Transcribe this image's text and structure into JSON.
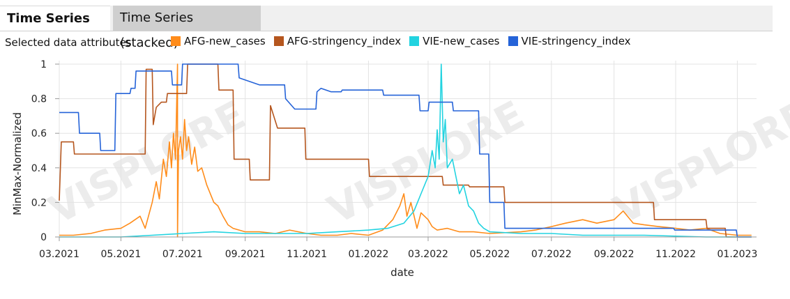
{
  "tabs": [
    {
      "label": "Time Series",
      "active": true
    },
    {
      "label": "Time Series (stacked)",
      "active": false
    }
  ],
  "selected_label": "Selected data attributes",
  "watermark": "VISPLORE",
  "chart_data": {
    "type": "line",
    "xlabel": "date",
    "ylabel": "MinMax-Normalized",
    "x_ticks": [
      "03.2021",
      "05.2021",
      "07.2021",
      "09.2021",
      "11.2021",
      "01.2022",
      "03.2022",
      "05.2022",
      "07.2022",
      "09.2022",
      "11.2022",
      "01.2023"
    ],
    "y_ticks": [
      "0",
      "0.2",
      "0.4",
      "0.6",
      "0.8",
      "1"
    ],
    "xlim": [
      "2021-03-01",
      "2023-01-20"
    ],
    "ylim": [
      0,
      1
    ],
    "grid": true,
    "legend_position": "top",
    "series": [
      {
        "name": "AFG-new_cases",
        "color": "#ff8c1a",
        "points": [
          [
            "2021-03-01",
            0.01
          ],
          [
            "2021-03-15",
            0.01
          ],
          [
            "2021-04-01",
            0.02
          ],
          [
            "2021-04-15",
            0.04
          ],
          [
            "2021-05-01",
            0.05
          ],
          [
            "2021-05-10",
            0.08
          ],
          [
            "2021-05-20",
            0.12
          ],
          [
            "2021-05-25",
            0.05
          ],
          [
            "2021-06-01",
            0.2
          ],
          [
            "2021-06-05",
            0.32
          ],
          [
            "2021-06-08",
            0.22
          ],
          [
            "2021-06-12",
            0.45
          ],
          [
            "2021-06-15",
            0.35
          ],
          [
            "2021-06-18",
            0.55
          ],
          [
            "2021-06-20",
            0.4
          ],
          [
            "2021-06-22",
            0.6
          ],
          [
            "2021-06-24",
            0.45
          ],
          [
            "2021-06-26",
            1.0
          ],
          [
            "2021-06-26",
            0.0
          ],
          [
            "2021-06-27",
            0.5
          ],
          [
            "2021-06-29",
            0.58
          ],
          [
            "2021-07-01",
            0.45
          ],
          [
            "2021-07-03",
            0.68
          ],
          [
            "2021-07-05",
            0.5
          ],
          [
            "2021-07-07",
            0.58
          ],
          [
            "2021-07-10",
            0.42
          ],
          [
            "2021-07-13",
            0.52
          ],
          [
            "2021-07-16",
            0.38
          ],
          [
            "2021-07-20",
            0.4
          ],
          [
            "2021-07-25",
            0.3
          ],
          [
            "2021-08-01",
            0.2
          ],
          [
            "2021-08-05",
            0.18
          ],
          [
            "2021-08-10",
            0.12
          ],
          [
            "2021-08-15",
            0.07
          ],
          [
            "2021-08-20",
            0.05
          ],
          [
            "2021-09-01",
            0.03
          ],
          [
            "2021-09-15",
            0.03
          ],
          [
            "2021-10-01",
            0.02
          ],
          [
            "2021-10-15",
            0.04
          ],
          [
            "2021-11-01",
            0.02
          ],
          [
            "2021-11-15",
            0.01
          ],
          [
            "2021-12-01",
            0.01
          ],
          [
            "2021-12-15",
            0.02
          ],
          [
            "2022-01-01",
            0.01
          ],
          [
            "2022-01-15",
            0.04
          ],
          [
            "2022-01-25",
            0.1
          ],
          [
            "2022-02-01",
            0.18
          ],
          [
            "2022-02-05",
            0.25
          ],
          [
            "2022-02-08",
            0.12
          ],
          [
            "2022-02-12",
            0.2
          ],
          [
            "2022-02-18",
            0.05
          ],
          [
            "2022-02-22",
            0.14
          ],
          [
            "2022-03-01",
            0.1
          ],
          [
            "2022-03-05",
            0.06
          ],
          [
            "2022-03-10",
            0.04
          ],
          [
            "2022-03-20",
            0.05
          ],
          [
            "2022-04-01",
            0.03
          ],
          [
            "2022-04-15",
            0.03
          ],
          [
            "2022-05-01",
            0.02
          ],
          [
            "2022-06-01",
            0.03
          ],
          [
            "2022-06-15",
            0.04
          ],
          [
            "2022-07-01",
            0.06
          ],
          [
            "2022-07-15",
            0.08
          ],
          [
            "2022-08-01",
            0.1
          ],
          [
            "2022-08-15",
            0.08
          ],
          [
            "2022-09-01",
            0.1
          ],
          [
            "2022-09-10",
            0.15
          ],
          [
            "2022-09-20",
            0.08
          ],
          [
            "2022-10-01",
            0.07
          ],
          [
            "2022-10-15",
            0.06
          ],
          [
            "2022-11-01",
            0.05
          ],
          [
            "2022-11-15",
            0.04
          ],
          [
            "2022-12-01",
            0.05
          ],
          [
            "2022-12-15",
            0.02
          ],
          [
            "2023-01-01",
            0.01
          ],
          [
            "2023-01-15",
            0.01
          ]
        ]
      },
      {
        "name": "AFG-stringency_index",
        "color": "#b5561e",
        "points": [
          [
            "2021-03-01",
            0.21
          ],
          [
            "2021-03-03",
            0.55
          ],
          [
            "2021-03-15",
            0.55
          ],
          [
            "2021-03-16",
            0.48
          ],
          [
            "2021-05-25",
            0.48
          ],
          [
            "2021-05-26",
            0.97
          ],
          [
            "2021-06-01",
            0.97
          ],
          [
            "2021-06-02",
            0.65
          ],
          [
            "2021-06-05",
            0.75
          ],
          [
            "2021-06-10",
            0.78
          ],
          [
            "2021-06-15",
            0.78
          ],
          [
            "2021-06-16",
            0.83
          ],
          [
            "2021-07-05",
            0.83
          ],
          [
            "2021-07-06",
            1.0
          ],
          [
            "2021-08-05",
            1.0
          ],
          [
            "2021-08-06",
            0.85
          ],
          [
            "2021-08-20",
            0.85
          ],
          [
            "2021-08-21",
            0.45
          ],
          [
            "2021-09-05",
            0.45
          ],
          [
            "2021-09-06",
            0.33
          ],
          [
            "2021-09-25",
            0.33
          ],
          [
            "2021-09-26",
            0.76
          ],
          [
            "2021-10-03",
            0.63
          ],
          [
            "2021-10-30",
            0.63
          ],
          [
            "2021-10-31",
            0.45
          ],
          [
            "2022-01-01",
            0.45
          ],
          [
            "2022-01-02",
            0.35
          ],
          [
            "2022-03-15",
            0.35
          ],
          [
            "2022-03-16",
            0.3
          ],
          [
            "2022-04-10",
            0.3
          ],
          [
            "2022-04-11",
            0.29
          ],
          [
            "2022-05-15",
            0.29
          ],
          [
            "2022-05-16",
            0.2
          ],
          [
            "2022-10-10",
            0.2
          ],
          [
            "2022-10-11",
            0.1
          ],
          [
            "2022-12-01",
            0.1
          ],
          [
            "2022-12-02",
            0.05
          ],
          [
            "2022-12-20",
            0.05
          ],
          [
            "2022-12-21",
            0.0
          ],
          [
            "2023-01-15",
            0.0
          ]
        ]
      },
      {
        "name": "VIE-new_cases",
        "color": "#22d3e0",
        "points": [
          [
            "2021-03-01",
            0.0
          ],
          [
            "2021-05-01",
            0.0
          ],
          [
            "2021-06-01",
            0.01
          ],
          [
            "2021-07-01",
            0.02
          ],
          [
            "2021-08-01",
            0.03
          ],
          [
            "2021-09-01",
            0.02
          ],
          [
            "2021-10-01",
            0.02
          ],
          [
            "2021-11-01",
            0.02
          ],
          [
            "2021-12-01",
            0.03
          ],
          [
            "2022-01-01",
            0.04
          ],
          [
            "2022-01-20",
            0.05
          ],
          [
            "2022-02-05",
            0.08
          ],
          [
            "2022-02-15",
            0.15
          ],
          [
            "2022-02-22",
            0.25
          ],
          [
            "2022-03-01",
            0.35
          ],
          [
            "2022-03-05",
            0.5
          ],
          [
            "2022-03-08",
            0.4
          ],
          [
            "2022-03-10",
            0.62
          ],
          [
            "2022-03-12",
            0.45
          ],
          [
            "2022-03-14",
            1.0
          ],
          [
            "2022-03-16",
            0.55
          ],
          [
            "2022-03-18",
            0.68
          ],
          [
            "2022-03-20",
            0.4
          ],
          [
            "2022-03-25",
            0.45
          ],
          [
            "2022-04-01",
            0.25
          ],
          [
            "2022-04-05",
            0.3
          ],
          [
            "2022-04-10",
            0.18
          ],
          [
            "2022-04-15",
            0.15
          ],
          [
            "2022-04-20",
            0.08
          ],
          [
            "2022-04-25",
            0.05
          ],
          [
            "2022-05-01",
            0.03
          ],
          [
            "2022-06-01",
            0.02
          ],
          [
            "2022-07-01",
            0.02
          ],
          [
            "2022-08-01",
            0.01
          ],
          [
            "2022-10-01",
            0.01
          ],
          [
            "2022-12-01",
            0.0
          ],
          [
            "2023-01-15",
            0.0
          ]
        ]
      },
      {
        "name": "VIE-stringency_index",
        "color": "#2563d8",
        "points": [
          [
            "2021-03-01",
            0.72
          ],
          [
            "2021-03-20",
            0.72
          ],
          [
            "2021-03-21",
            0.6
          ],
          [
            "2021-04-10",
            0.6
          ],
          [
            "2021-04-11",
            0.5
          ],
          [
            "2021-04-25",
            0.5
          ],
          [
            "2021-04-26",
            0.83
          ],
          [
            "2021-05-10",
            0.83
          ],
          [
            "2021-05-11",
            0.86
          ],
          [
            "2021-05-15",
            0.86
          ],
          [
            "2021-05-16",
            0.96
          ],
          [
            "2021-06-20",
            0.96
          ],
          [
            "2021-06-21",
            0.88
          ],
          [
            "2021-06-30",
            0.88
          ],
          [
            "2021-07-01",
            1.0
          ],
          [
            "2021-08-25",
            1.0
          ],
          [
            "2021-08-26",
            0.92
          ],
          [
            "2021-09-05",
            0.9
          ],
          [
            "2021-09-15",
            0.88
          ],
          [
            "2021-10-10",
            0.88
          ],
          [
            "2021-10-11",
            0.8
          ],
          [
            "2021-10-20",
            0.74
          ],
          [
            "2021-11-10",
            0.74
          ],
          [
            "2021-11-11",
            0.84
          ],
          [
            "2021-11-15",
            0.86
          ],
          [
            "2021-11-25",
            0.84
          ],
          [
            "2021-12-05",
            0.84
          ],
          [
            "2021-12-06",
            0.85
          ],
          [
            "2022-01-15",
            0.85
          ],
          [
            "2022-01-16",
            0.82
          ],
          [
            "2022-02-20",
            0.82
          ],
          [
            "2022-02-21",
            0.73
          ],
          [
            "2022-03-01",
            0.73
          ],
          [
            "2022-03-02",
            0.78
          ],
          [
            "2022-03-25",
            0.78
          ],
          [
            "2022-03-26",
            0.73
          ],
          [
            "2022-04-20",
            0.73
          ],
          [
            "2022-04-21",
            0.48
          ],
          [
            "2022-04-30",
            0.48
          ],
          [
            "2022-05-01",
            0.2
          ],
          [
            "2022-05-15",
            0.2
          ],
          [
            "2022-05-16",
            0.05
          ],
          [
            "2022-10-30",
            0.05
          ],
          [
            "2022-10-31",
            0.04
          ],
          [
            "2022-12-31",
            0.04
          ],
          [
            "2023-01-01",
            0.0
          ],
          [
            "2023-01-15",
            0.0
          ]
        ]
      }
    ]
  }
}
